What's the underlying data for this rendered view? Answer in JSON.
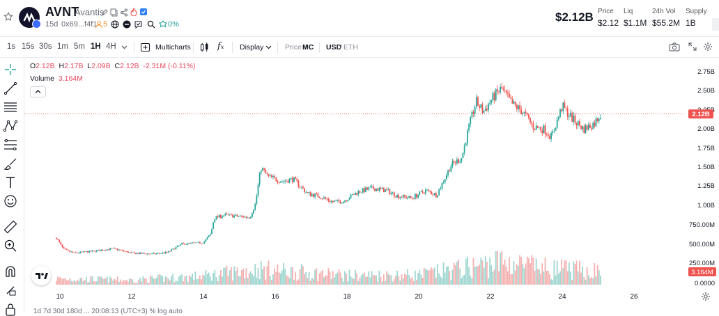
{
  "header": {
    "ticker": "AVNT",
    "name": "Avantis",
    "age": "15d",
    "address": "0x69...f4f1",
    "holders": "5",
    "change": "0%",
    "market_cap": "$2.12B",
    "stats": [
      {
        "label": "Price",
        "value": "$2.12"
      },
      {
        "label": "Liq",
        "value": "$1.1M"
      },
      {
        "label": "24h Vol",
        "value": "$55.2M"
      },
      {
        "label": "Supply",
        "value": "1B"
      }
    ]
  },
  "toolbar": {
    "timeframes": [
      "1s",
      "15s",
      "30s",
      "1m",
      "5m",
      "1H",
      "4H"
    ],
    "active_timeframe": "1H",
    "multicharts": "Multicharts",
    "display": "Display",
    "price": "Price",
    "mc": "MC",
    "usd": "USD",
    "eth": "ETH"
  },
  "legend": {
    "o_label": "O",
    "o": "2.12B",
    "h_label": "H",
    "h": "2.17B",
    "l_label": "L",
    "l": "2.09B",
    "c_label": "C",
    "c": "2.12B",
    "change": "-2.31M (-0.11%)",
    "volume_label": "Volume",
    "volume": "3.164M"
  },
  "colors": {
    "up": "#26a69a",
    "down": "#ef5350",
    "accent": "#3b6bff"
  },
  "chart_data": {
    "type": "candlestick",
    "interval": "1H",
    "x_labels": [
      "10",
      "12",
      "14",
      "16",
      "18",
      "20",
      "22",
      "24",
      "26"
    ],
    "y_labels": [
      "2.75B",
      "2.50B",
      "2.25B",
      "2.00B",
      "1.75B",
      "1.50B",
      "1.25B",
      "1.00B",
      "750.00M",
      "500.00M",
      "250.00M",
      "0.0000"
    ],
    "last_price_label": "2.12B",
    "last_volume_label": "3.164M",
    "ylim_price": [
      -0.05,
      2.85
    ],
    "price_anchors": [
      {
        "day": 9.9,
        "v": 0.5
      },
      {
        "day": 10.1,
        "v": 0.35
      },
      {
        "day": 10.4,
        "v": 0.3
      },
      {
        "day": 11.0,
        "v": 0.33
      },
      {
        "day": 11.5,
        "v": 0.36
      },
      {
        "day": 12.0,
        "v": 0.3
      },
      {
        "day": 12.6,
        "v": 0.29
      },
      {
        "day": 13.0,
        "v": 0.31
      },
      {
        "day": 13.4,
        "v": 0.42
      },
      {
        "day": 14.0,
        "v": 0.44
      },
      {
        "day": 14.2,
        "v": 0.55
      },
      {
        "day": 14.3,
        "v": 0.76
      },
      {
        "day": 14.6,
        "v": 0.8
      },
      {
        "day": 15.0,
        "v": 0.78
      },
      {
        "day": 15.3,
        "v": 0.77
      },
      {
        "day": 15.45,
        "v": 0.95
      },
      {
        "day": 15.6,
        "v": 1.42
      },
      {
        "day": 15.8,
        "v": 1.3
      },
      {
        "day": 16.2,
        "v": 1.24
      },
      {
        "day": 16.5,
        "v": 1.27
      },
      {
        "day": 16.9,
        "v": 1.08
      },
      {
        "day": 17.2,
        "v": 1.05
      },
      {
        "day": 17.6,
        "v": 0.97
      },
      {
        "day": 17.9,
        "v": 0.98
      },
      {
        "day": 18.3,
        "v": 1.1
      },
      {
        "day": 18.7,
        "v": 1.15
      },
      {
        "day": 19.1,
        "v": 1.12
      },
      {
        "day": 19.4,
        "v": 1.05
      },
      {
        "day": 19.8,
        "v": 1.02
      },
      {
        "day": 20.2,
        "v": 1.12
      },
      {
        "day": 20.5,
        "v": 1.06
      },
      {
        "day": 20.9,
        "v": 1.45
      },
      {
        "day": 21.2,
        "v": 1.55
      },
      {
        "day": 21.4,
        "v": 1.95
      },
      {
        "day": 21.6,
        "v": 2.28
      },
      {
        "day": 21.8,
        "v": 2.15
      },
      {
        "day": 22.1,
        "v": 2.35
      },
      {
        "day": 22.3,
        "v": 2.45
      },
      {
        "day": 22.6,
        "v": 2.25
      },
      {
        "day": 22.9,
        "v": 2.15
      },
      {
        "day": 23.2,
        "v": 1.95
      },
      {
        "day": 23.5,
        "v": 1.92
      },
      {
        "day": 23.7,
        "v": 1.82
      },
      {
        "day": 24.0,
        "v": 2.22
      },
      {
        "day": 24.3,
        "v": 2.05
      },
      {
        "day": 24.6,
        "v": 1.92
      },
      {
        "day": 24.9,
        "v": 2.0
      },
      {
        "day": 25.1,
        "v": 2.15
      }
    ],
    "volume_anchors": [
      {
        "day": 9.9,
        "v": 120
      },
      {
        "day": 12.0,
        "v": 90
      },
      {
        "day": 14.0,
        "v": 170
      },
      {
        "day": 15.5,
        "v": 300
      },
      {
        "day": 18.0,
        "v": 180
      },
      {
        "day": 20.0,
        "v": 190
      },
      {
        "day": 21.5,
        "v": 350
      },
      {
        "day": 22.3,
        "v": 450
      },
      {
        "day": 23.5,
        "v": 320
      },
      {
        "day": 25.1,
        "v": 260
      }
    ]
  },
  "status_bar": "1d  7d  30d  180d  ...  20:08:13 (UTC+3)  %  log  auto"
}
